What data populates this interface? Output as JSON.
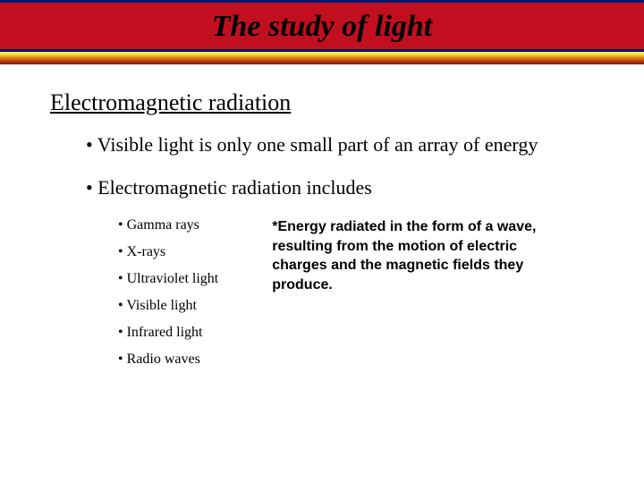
{
  "header": {
    "title": "The study of light",
    "band_bg": "#c10f1f",
    "band_border": "#021871",
    "title_color": "#000000"
  },
  "gradient": {
    "stops": [
      "#f7e84a",
      "#e9a32a",
      "#d76f18",
      "#b63a0e",
      "#7a1808"
    ]
  },
  "subtitle": "Electromagnetic radiation",
  "bullets": {
    "b1": "• Visible light is only one small part of an array of energy",
    "b2": "• Electromagnetic radiation includes"
  },
  "sublist": {
    "i0": "• Gamma rays",
    "i1": "• X-rays",
    "i2": "• Ultraviolet light",
    "i3": "• Visible light",
    "i4": "• Infrared light",
    "i5": "• Radio waves"
  },
  "definition": "*Energy radiated in the form of a wave, resulting from the motion of electric charges and the magnetic fields they produce.",
  "style": {
    "title_fontsize": 34,
    "subtitle_fontsize": 26,
    "bullet_fontsize": 22,
    "subitem_fontsize": 16,
    "definition_fontsize": 16,
    "background": "#ffffff"
  }
}
